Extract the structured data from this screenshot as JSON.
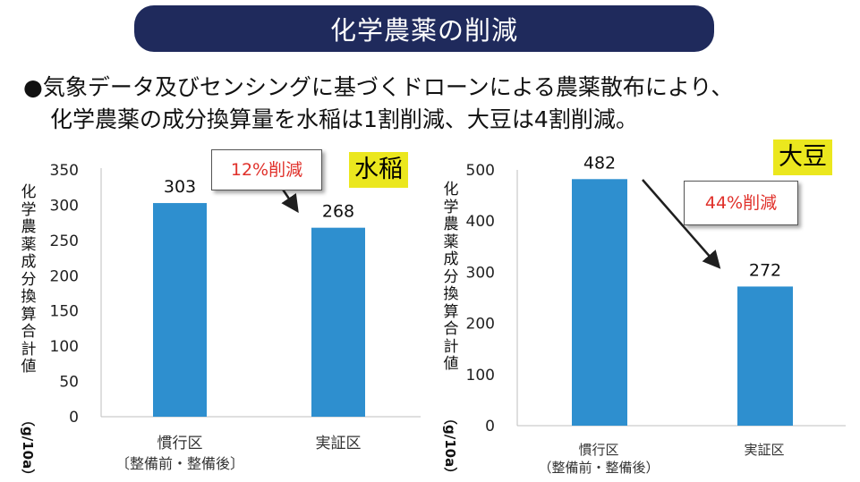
{
  "title": "化学農薬の削減",
  "bullet": {
    "line1": "●気象データ及びセンシングに基づくドローンによる農薬散布により、",
    "line2": "化学農薬の成分換算量を水稲は1割削減、大豆は4割削減。"
  },
  "colors": {
    "title_bg": "#1f2a5c",
    "bar": "#2e8fcf",
    "highlight": "#ebe71e",
    "reduction_text": "#e0302a"
  },
  "chart_data": [
    {
      "type": "bar",
      "tag": "水稲",
      "categories": [
        "慣行区",
        "実証区"
      ],
      "category_sub": [
        "〔整備前・整備後〕",
        ""
      ],
      "values": [
        303,
        268
      ],
      "value_labels": [
        "303",
        "268"
      ],
      "ylim": [
        0,
        350
      ],
      "yticks": [
        "0",
        "50",
        "100",
        "150",
        "200",
        "250",
        "300",
        "350"
      ],
      "ylabel": "化学農薬成分換算合計値",
      "yunit": "（g/10a）",
      "annotation": "12%削減"
    },
    {
      "type": "bar",
      "tag": "大豆",
      "categories": [
        "慣行区",
        "実証区"
      ],
      "category_sub": [
        "（整備前・整備後）",
        ""
      ],
      "values": [
        482,
        272
      ],
      "value_labels": [
        "482",
        "272"
      ],
      "ylim": [
        0,
        500
      ],
      "yticks": [
        "0",
        "100",
        "200",
        "300",
        "400",
        "500"
      ],
      "ylabel": "化学農薬成分換算合計値",
      "yunit": "（g/10a）",
      "annotation": "44%削減"
    }
  ]
}
